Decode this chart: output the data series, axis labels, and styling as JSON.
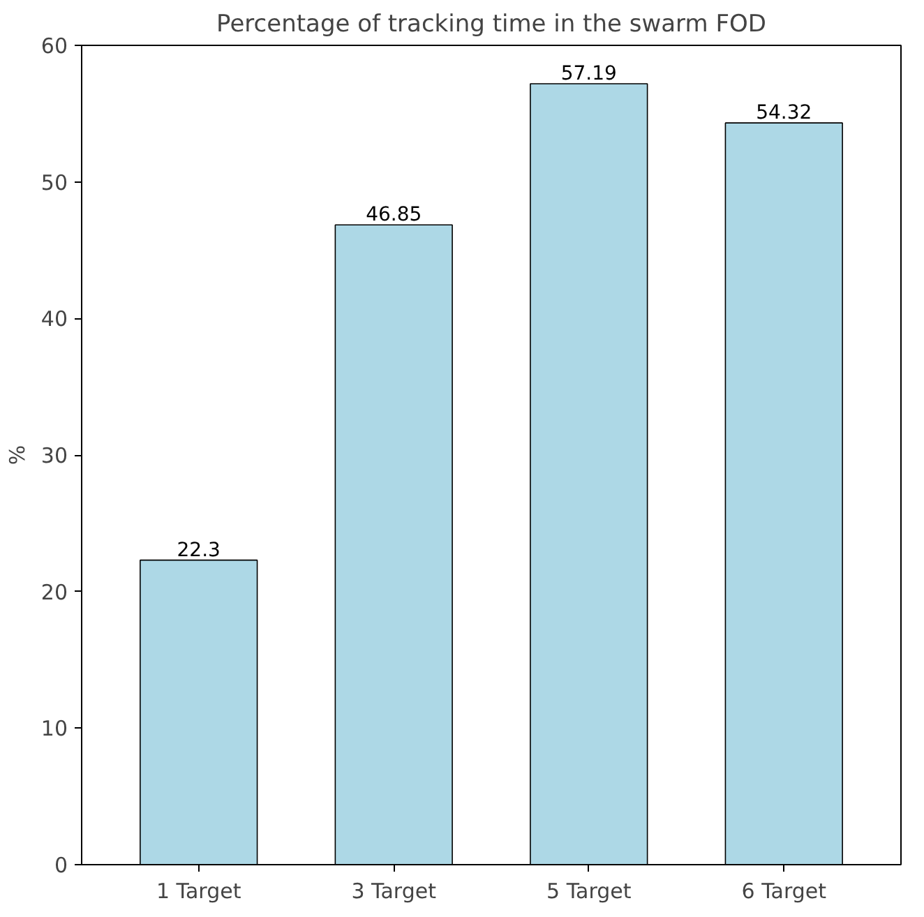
{
  "chart_data": {
    "type": "bar",
    "title": "Percentage of tracking time in the swarm FOD",
    "ylabel": "%",
    "categories": [
      "1 Target",
      "3 Target",
      "5 Target",
      "6 Target"
    ],
    "values": [
      22.3,
      46.85,
      57.19,
      54.32
    ],
    "color": "#add8e6",
    "ylim": [
      0,
      60
    ],
    "yticks": [
      0,
      10,
      20,
      30,
      40,
      50,
      60
    ],
    "data_labels": true,
    "grid": false
  }
}
